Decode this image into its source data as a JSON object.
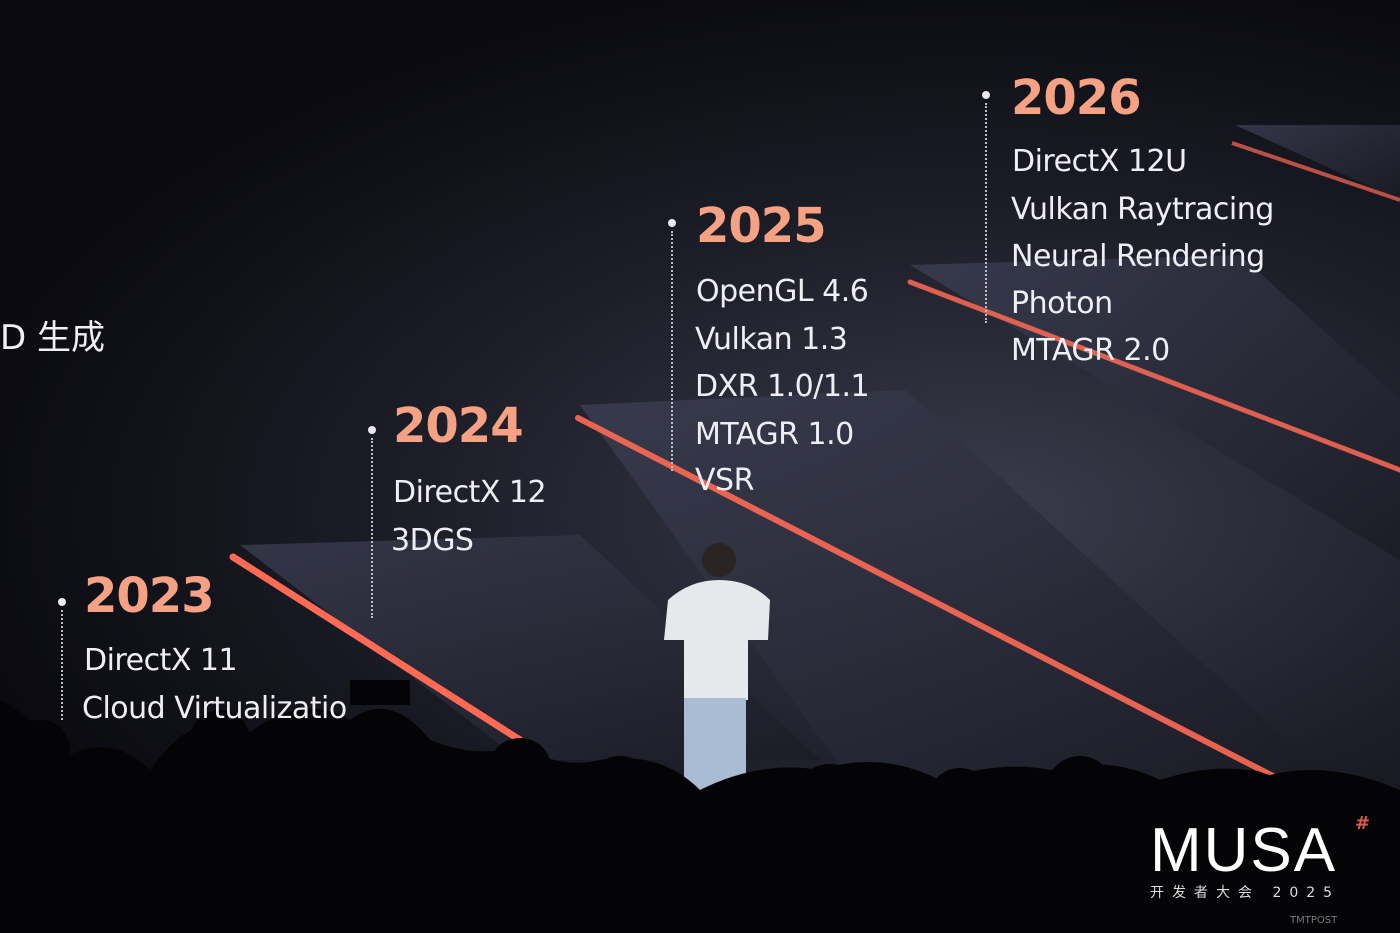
{
  "slide": {
    "left_partial_text": "D 生成",
    "timeline": [
      {
        "year": "2023",
        "items": [
          "DirectX 11",
          "Cloud Virtualizatio"
        ]
      },
      {
        "year": "2024",
        "items": [
          "DirectX 12",
          "3DGS"
        ]
      },
      {
        "year": "2025",
        "items": [
          "OpenGL 4.6",
          "Vulkan 1.3",
          "DXR 1.0/1.1",
          "MTAGR 1.0",
          "VSR"
        ]
      },
      {
        "year": "2026",
        "items": [
          "DirectX 12U",
          "Vulkan Raytracing",
          "Neural Rendering",
          "Photon",
          "MTAGR 2.0"
        ]
      }
    ],
    "accent_color": "#f4a283",
    "stripe_color": "#ff6a55"
  },
  "logo": {
    "name": "MUSA",
    "subtitle": "开发者大会 2025"
  },
  "watermark": {
    "text": "TMTPOST"
  }
}
